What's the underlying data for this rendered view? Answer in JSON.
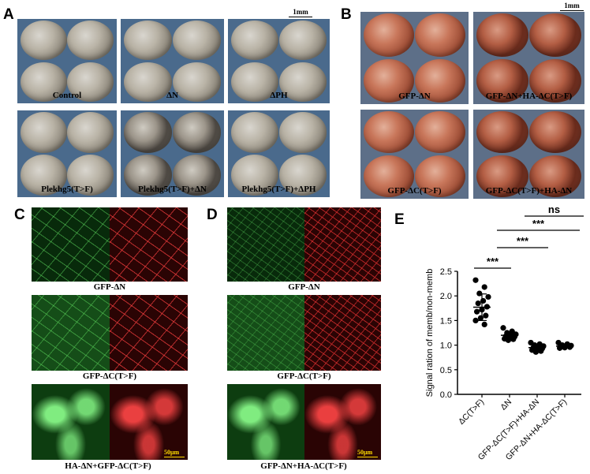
{
  "panels": {
    "A": {
      "label": "A",
      "scale": "1mm",
      "tiles": [
        "Control",
        "ΔN",
        "ΔPH",
        "Plekhg5(T>F)",
        "Plekhg5(T>F)+ΔN",
        "Plekhg5(T>F)+ΔPH"
      ]
    },
    "B": {
      "label": "B",
      "scale": "1mm",
      "tiles": [
        "GFP-ΔN",
        "GFP-ΔN+HA-ΔC(T>F)",
        "GFP-ΔC(T>F)",
        "GFP-ΔC(T>F)+HA-ΔN"
      ]
    },
    "C": {
      "label": "C",
      "rows": [
        "GFP-ΔN",
        "GFP-ΔC(T>F)",
        "HA-ΔN+GFP-ΔC(T>F)"
      ],
      "scale": "50μm"
    },
    "D": {
      "label": "D",
      "rows": [
        "GFP-ΔN",
        "GFP-ΔC(T>F)",
        "GFP-ΔN+HA-ΔC(T>F)"
      ],
      "scale": "50μm"
    },
    "E": {
      "label": "E",
      "significance": [
        "***",
        "***",
        "***",
        "ns"
      ]
    }
  },
  "chart_data": {
    "type": "scatter",
    "ylabel": "Signal ration of memb/non-memb",
    "ylim": [
      0.0,
      2.5
    ],
    "yticks": [
      "0.0",
      "0.5",
      "1.0",
      "1.5",
      "2.0",
      "2.5"
    ],
    "categories": [
      "ΔC(T>F)",
      "ΔN",
      "GFP-ΔC(T>F)+HA-ΔN",
      "GFP-ΔN+HA-ΔC(T>F)"
    ],
    "series": [
      {
        "values": [
          2.32,
          2.18,
          2.05,
          1.98,
          1.9,
          1.85,
          1.78,
          1.72,
          1.68,
          1.6,
          1.55,
          1.5,
          1.42
        ],
        "mean": 1.77,
        "sd": 0.27
      },
      {
        "values": [
          1.35,
          1.28,
          1.25,
          1.22,
          1.2,
          1.18,
          1.17,
          1.15,
          1.13,
          1.12,
          1.1
        ],
        "mean": 1.2,
        "sd": 0.07
      },
      {
        "values": [
          1.05,
          1.02,
          1.0,
          0.98,
          0.96,
          0.95,
          0.93,
          0.92,
          0.9,
          0.88,
          0.86
        ],
        "mean": 0.95,
        "sd": 0.06
      },
      {
        "values": [
          1.05,
          1.02,
          1.0,
          0.99,
          0.98,
          0.97,
          0.96,
          0.95,
          0.94
        ],
        "mean": 0.98,
        "sd": 0.04
      }
    ]
  }
}
